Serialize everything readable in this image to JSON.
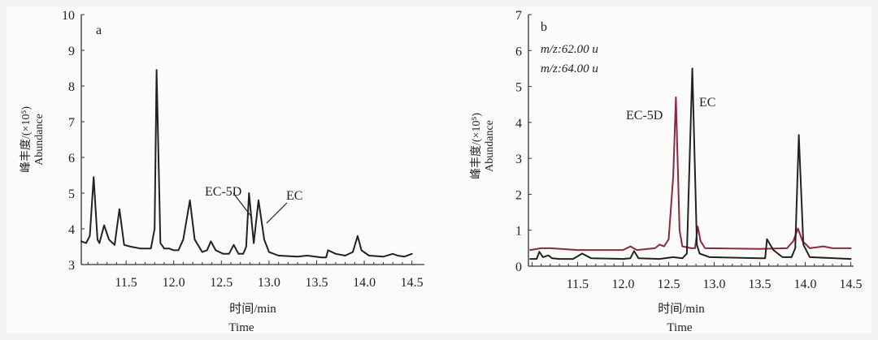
{
  "chart_data": [
    {
      "type": "line",
      "panel_label": "a",
      "xlabel": "时间/min",
      "xlabel_en": "Time",
      "ylabel": "峰丰度/(×10⁵)",
      "ylabel_en": "Abundance",
      "xlim": [
        11.03,
        14.55
      ],
      "ylim": [
        3,
        10
      ],
      "xticks": [
        "11.5",
        "12.0",
        "12.5",
        "13.0",
        "13.5",
        "14.0",
        "14.5"
      ],
      "yticks": [
        "3",
        "4",
        "5",
        "6",
        "7",
        "8",
        "9",
        "10"
      ],
      "grid": false,
      "annotations": [
        {
          "text": "EC-5D",
          "x": 12.79,
          "y": 5.0
        },
        {
          "text": "EC",
          "x": 12.89,
          "y": 4.8
        }
      ],
      "series": [
        {
          "color": "#222222",
          "x": [
            11.03,
            11.08,
            11.12,
            11.16,
            11.2,
            11.22,
            11.27,
            11.32,
            11.38,
            11.43,
            11.48,
            11.55,
            11.65,
            11.7,
            11.76,
            11.8,
            11.82,
            11.86,
            11.9,
            11.95,
            12.0,
            12.05,
            12.1,
            12.17,
            12.22,
            12.3,
            12.35,
            12.39,
            12.44,
            12.52,
            12.58,
            12.63,
            12.68,
            12.73,
            12.76,
            12.79,
            12.84,
            12.89,
            12.95,
            13.0,
            13.1,
            13.3,
            13.4,
            13.55,
            13.6,
            13.62,
            13.7,
            13.8,
            13.88,
            13.93,
            13.97,
            14.05,
            14.2,
            14.3,
            14.35,
            14.42,
            14.5
          ],
          "y": [
            3.65,
            3.6,
            3.8,
            5.45,
            3.7,
            3.6,
            4.1,
            3.7,
            3.55,
            4.55,
            3.55,
            3.5,
            3.45,
            3.45,
            3.45,
            4.0,
            8.45,
            3.6,
            3.45,
            3.45,
            3.4,
            3.4,
            3.7,
            4.8,
            3.7,
            3.35,
            3.4,
            3.65,
            3.4,
            3.3,
            3.3,
            3.55,
            3.3,
            3.3,
            3.5,
            5.0,
            3.6,
            4.8,
            3.7,
            3.35,
            3.25,
            3.22,
            3.25,
            3.2,
            3.2,
            3.4,
            3.3,
            3.25,
            3.35,
            3.8,
            3.4,
            3.25,
            3.22,
            3.3,
            3.25,
            3.22,
            3.3
          ]
        }
      ]
    },
    {
      "type": "line",
      "panel_label": "b",
      "xlabel": "时间/min",
      "xlabel_en": "Time",
      "ylabel": "峰丰度/(×10⁵)",
      "ylabel_en": "Abundance",
      "xlim": [
        10.96,
        14.55
      ],
      "ylim": [
        0,
        7
      ],
      "xticks": [
        "11.5",
        "12.0",
        "12.5",
        "13.0",
        "13.5",
        "14.0",
        "14.5"
      ],
      "yticks": [
        "0",
        "1",
        "2",
        "3",
        "4",
        "5",
        "6",
        "7"
      ],
      "grid": false,
      "legend_text": [
        "m/z:62.00 u",
        "m/z:64.00 u"
      ],
      "annotations": [
        {
          "text": "EC-5D",
          "x": 12.58,
          "y": 4.7
        },
        {
          "text": "EC",
          "x": 12.76,
          "y": 5.5
        }
      ],
      "series": [
        {
          "color": "#8b2a3f",
          "x": [
            10.98,
            11.1,
            11.2,
            11.5,
            12.0,
            12.08,
            12.15,
            12.35,
            12.4,
            12.45,
            12.5,
            12.55,
            12.58,
            12.62,
            12.65,
            12.75,
            12.79,
            12.82,
            12.85,
            12.9,
            13.5,
            13.8,
            13.87,
            13.92,
            13.97,
            14.05,
            14.2,
            14.3,
            14.5
          ],
          "y": [
            0.45,
            0.5,
            0.5,
            0.45,
            0.45,
            0.55,
            0.45,
            0.5,
            0.6,
            0.55,
            0.75,
            2.5,
            4.7,
            1.0,
            0.55,
            0.5,
            0.5,
            1.1,
            0.7,
            0.5,
            0.48,
            0.5,
            0.7,
            1.05,
            0.7,
            0.5,
            0.55,
            0.5,
            0.5
          ]
        },
        {
          "color": "#222222",
          "x": [
            10.98,
            11.05,
            11.08,
            11.12,
            11.18,
            11.22,
            11.3,
            11.45,
            11.55,
            11.65,
            12.0,
            12.08,
            12.12,
            12.17,
            12.4,
            12.55,
            12.65,
            12.7,
            12.76,
            12.81,
            12.84,
            12.95,
            13.5,
            13.56,
            13.58,
            13.65,
            13.75,
            13.85,
            13.89,
            13.93,
            13.98,
            14.05,
            14.5
          ],
          "y": [
            0.2,
            0.2,
            0.4,
            0.25,
            0.3,
            0.22,
            0.2,
            0.2,
            0.35,
            0.22,
            0.2,
            0.22,
            0.42,
            0.22,
            0.2,
            0.25,
            0.22,
            0.35,
            5.5,
            0.6,
            0.35,
            0.25,
            0.22,
            0.22,
            0.75,
            0.45,
            0.25,
            0.25,
            0.5,
            3.65,
            0.6,
            0.25,
            0.2
          ]
        }
      ]
    }
  ]
}
